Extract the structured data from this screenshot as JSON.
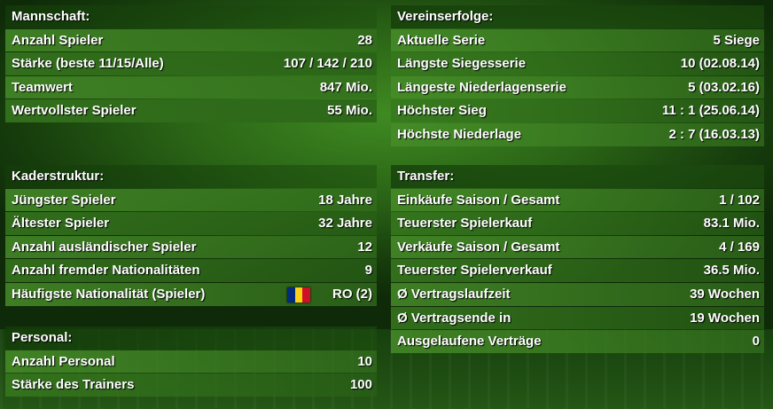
{
  "sections": [
    {
      "title": "Mannschaft:",
      "rows": [
        {
          "label": "Anzahl Spieler",
          "value": "28"
        },
        {
          "label": "Stärke (beste 11/15/Alle)",
          "value": "107 / 142 / 210"
        },
        {
          "label": "Teamwert",
          "value": "847 Mio."
        },
        {
          "label": "Wertvollster Spieler",
          "value": "55 Mio."
        }
      ]
    },
    {
      "title": "Vereinserfolge:",
      "rows": [
        {
          "label": "Aktuelle Serie",
          "value": "5 Siege"
        },
        {
          "label": "Längste Siegesserie",
          "value": "10 (02.08.14)"
        },
        {
          "label": "Längeste Niederlagenserie",
          "value": "5 (03.02.16)"
        },
        {
          "label": "Höchster Sieg",
          "value": "11 : 1 (25.06.14)"
        },
        {
          "label": "Höchste Niederlage",
          "value": "2 : 7 (16.03.13)"
        }
      ]
    },
    {
      "title": "Kaderstruktur:",
      "rows": [
        {
          "label": "Jüngster Spieler",
          "value": "18 Jahre"
        },
        {
          "label": "Ältester Spieler",
          "value": "32 Jahre"
        },
        {
          "label": "Anzahl ausländischer Spieler",
          "value": "12"
        },
        {
          "label": "Anzahl fremder Nationalitäten",
          "value": "9"
        },
        {
          "label": "Häufigste Nationalität (Spieler)",
          "value": "RO (2)"
        }
      ]
    },
    {
      "title": "Transfer:",
      "rows": [
        {
          "label": "Einkäufe Saison / Gesamt",
          "value": "1 / 102"
        },
        {
          "label": "Teuerster Spielerkauf",
          "value": "83.1 Mio."
        },
        {
          "label": "Verkäufe Saison / Gesamt",
          "value": "4 / 169"
        },
        {
          "label": "Teuerster Spielerverkauf",
          "value": "36.5 Mio."
        },
        {
          "label": "Ø Vertragslaufzeit",
          "value": "39 Wochen"
        },
        {
          "label": "Ø Vertragsende in",
          "value": "19 Wochen"
        },
        {
          "label": "Ausgelaufene Verträge",
          "value": "0"
        }
      ]
    },
    {
      "title": "Personal:",
      "rows": [
        {
          "label": "Anzahl Personal",
          "value": "10"
        },
        {
          "label": "Stärke des Trainers",
          "value": "100"
        }
      ]
    }
  ]
}
